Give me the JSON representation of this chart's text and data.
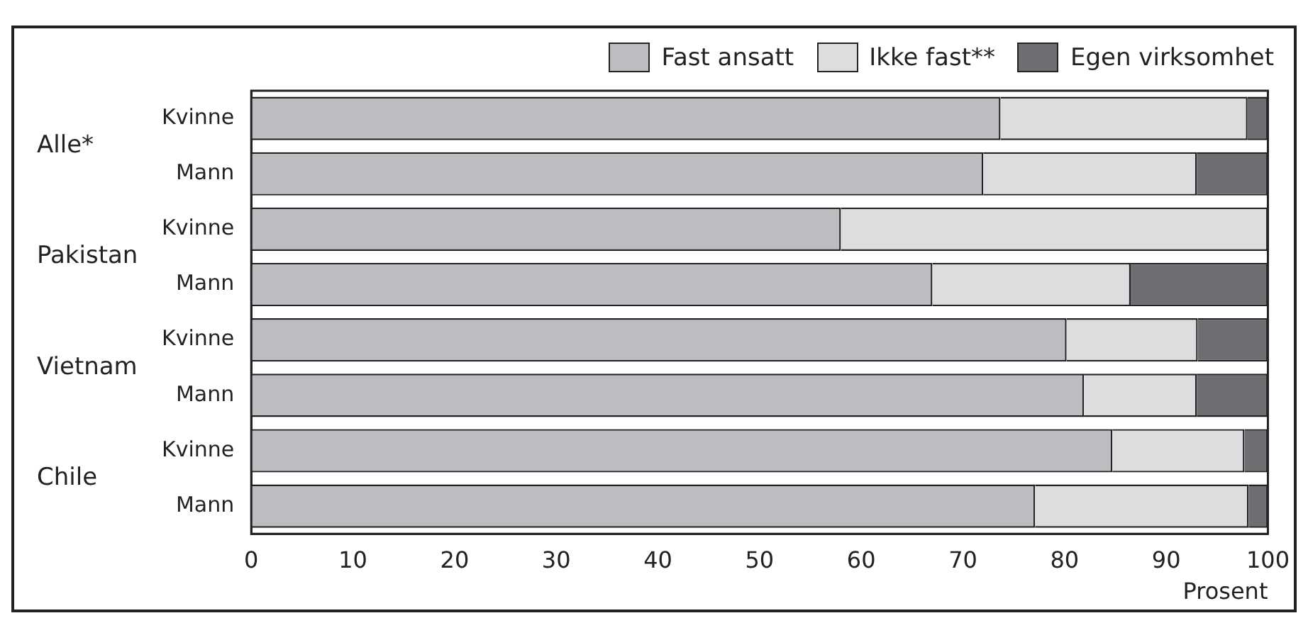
{
  "chart_data": {
    "type": "bar",
    "orientation": "horizontal",
    "stacked": true,
    "xlabel": "Prosent",
    "categories": [
      "Kvinne",
      "Mann",
      "Kvinne",
      "Mann",
      "Kvinne",
      "Mann",
      "Kvinne",
      "Mann"
    ],
    "annotations": [
      "Alle*",
      "Pakistan",
      "Vietnam",
      "Chile"
    ],
    "series": [
      {
        "name": "Fast ansatt",
        "color": "#bcbdc1",
        "values": [
          73.7,
          72.0,
          58.0,
          67.0,
          80.2,
          81.9,
          84.7,
          77.1
        ]
      },
      {
        "name": "Ikke fast**",
        "color": "#dcdddf",
        "values": [
          24.3,
          21.0,
          42.0,
          19.5,
          12.9,
          11.1,
          13.0,
          21.0
        ]
      },
      {
        "name": "Egen virksomhet",
        "color": "#6d6e71",
        "values": [
          2.0,
          7.0,
          0,
          13.5,
          6.9,
          7.0,
          2.3,
          1.9
        ]
      }
    ],
    "xlim": [
      0,
      100
    ],
    "xticks": [
      0,
      10,
      20,
      30,
      40,
      50,
      60,
      70,
      80,
      90,
      100
    ],
    "grid": false,
    "legend": "top right"
  }
}
